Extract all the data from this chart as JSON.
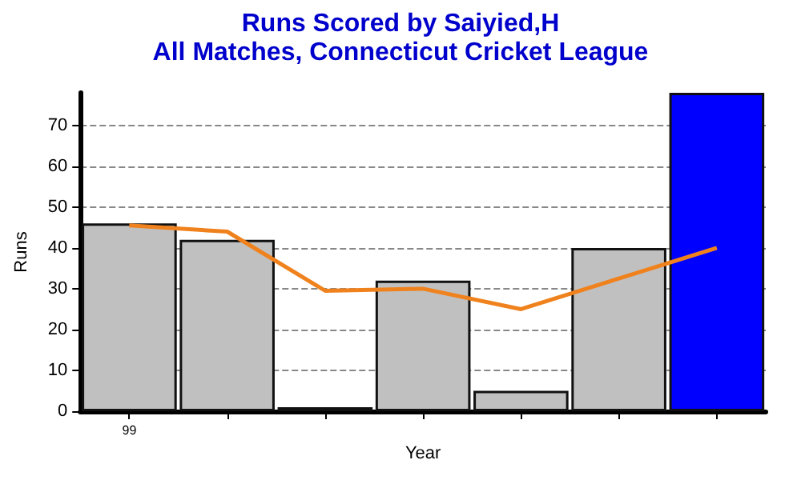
{
  "chart_data": {
    "type": "bar",
    "title": "Runs Scored by Saiyied,H",
    "subtitle": "All Matches, Connecticut Cricket League",
    "xlabel": "Year",
    "ylabel": "Runs",
    "categories": [
      "99",
      null,
      null,
      null,
      null,
      null,
      null
    ],
    "series": [
      {
        "colors": [
          "#c0c0c0",
          "#c0c0c0",
          "#1e4a1e",
          "#c0c0c0",
          "#c0c0c0",
          "#c0c0c0",
          "#0000ff"
        ],
        "values": [
          46,
          42,
          1,
          32,
          5,
          40,
          78
        ]
      },
      {
        "type": "line",
        "color": "#f0821e",
        "values": [
          45.5,
          44,
          29.5,
          30,
          25,
          32.5,
          40
        ],
        "marker": "none"
      }
    ],
    "ylim": [
      0,
      78
    ],
    "yticks": [
      0,
      10,
      20,
      30,
      40,
      50,
      60,
      70
    ],
    "grid": "y"
  }
}
